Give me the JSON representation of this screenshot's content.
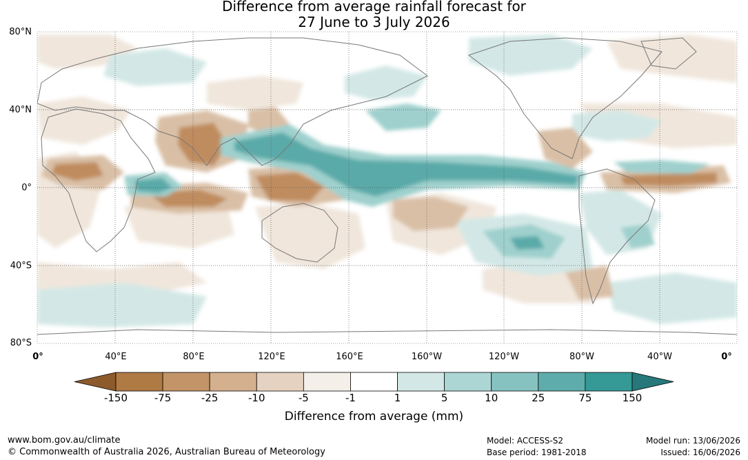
{
  "title": {
    "line1": "Difference from average rainfall forecast for",
    "line2": "27 June to 3 July 2026"
  },
  "map": {
    "lat_labels": [
      "80°N",
      "40°N",
      "0°",
      "40°S",
      "80°S"
    ],
    "lon_labels": [
      "0°",
      "40°E",
      "80°E",
      "120°E",
      "160°E",
      "160°W",
      "120°W",
      "80°W",
      "40°W",
      "0°"
    ],
    "gridlines": "dotted"
  },
  "colorbar": {
    "title": "Difference from average (mm)",
    "ticks": [
      "-150",
      "-75",
      "-25",
      "-10",
      "-5",
      "-1",
      "1",
      "5",
      "10",
      "25",
      "75",
      "150"
    ],
    "colors": [
      "#8c5a2b",
      "#b07a45",
      "#c39467",
      "#d4b08e",
      "#e5d2c0",
      "#f4efe9",
      "#ffffff",
      "#d3e8e6",
      "#acd6d4",
      "#86c2c0",
      "#5eacab",
      "#359996",
      "#26787a"
    ],
    "extend": "both"
  },
  "footer": {
    "url": "www.bom.gov.au/climate",
    "copyright": "© Commonwealth of Australia 2026, Australian Bureau of Meteorology",
    "model": "Model: ACCESS-S2",
    "base_period": "Base period: 1981-2018",
    "model_run": "Model run: 13/06/2026",
    "issued": "Issued: 16/06/2026"
  }
}
